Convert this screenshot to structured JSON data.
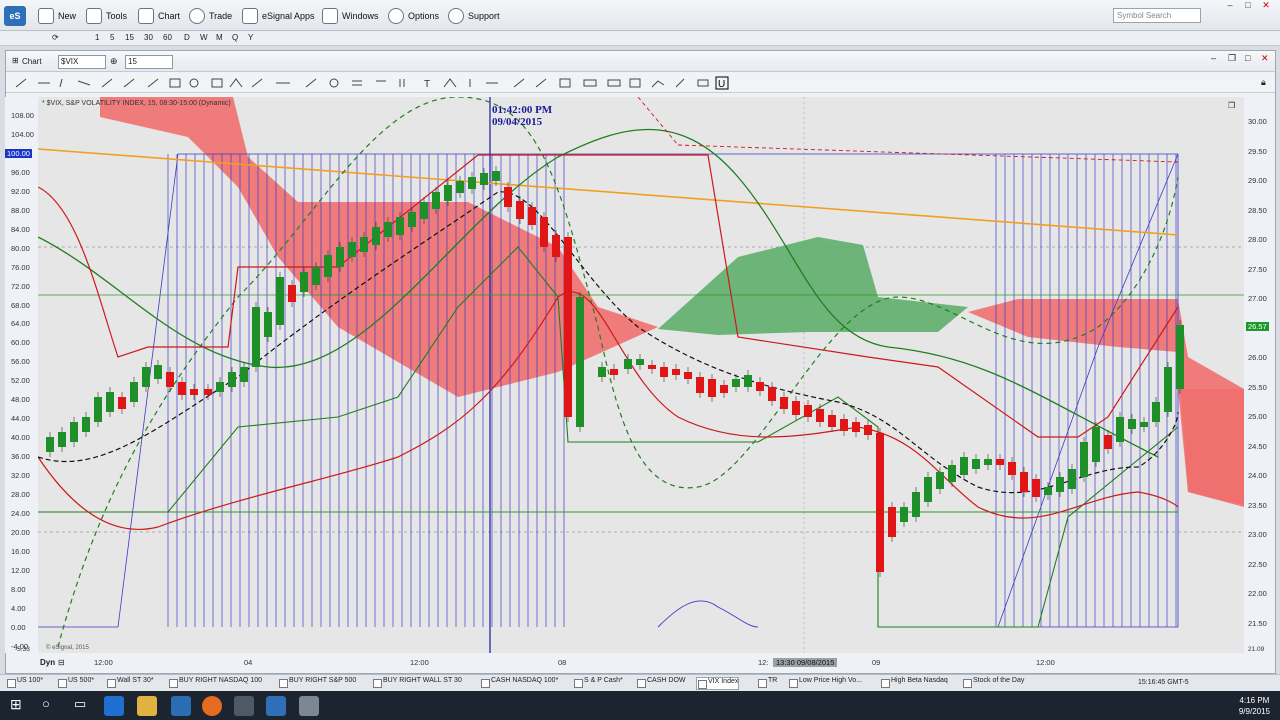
{
  "menubar": {
    "logo": "eS",
    "items": [
      "New",
      "Tools",
      "Chart",
      "Trade",
      "eSignal Apps",
      "Windows",
      "Options",
      "Support"
    ],
    "search_placeholder": "Symbol Search"
  },
  "intervals": [
    "1",
    "5",
    "15",
    "30",
    "60",
    "D",
    "W",
    "M",
    "Q",
    "Y"
  ],
  "chart": {
    "window_label": "Chart",
    "symbol": "$VIX",
    "interval": "15",
    "legend": "* $VIX, S&P VOLATILITY INDEX, 15, 08:30-15:00 (Dynamic)",
    "cursor_time": "01:42:00 PM",
    "cursor_date": "09/04/2015",
    "copyright": "© eSignal, 2015",
    "left_axis": [
      "108.00",
      "104.00",
      "100.00",
      "96.00",
      "92.00",
      "88.00",
      "84.00",
      "80.00",
      "76.00",
      "72.00",
      "68.00",
      "64.00",
      "60.00",
      "56.00",
      "52.00",
      "48.00",
      "44.00",
      "40.00",
      "36.00",
      "32.00",
      "28.00",
      "24.00",
      "20.00",
      "16.00",
      "12.00",
      "8.00",
      "4.00",
      "0.00",
      "-4.00"
    ],
    "left_axis_marker": "100.00",
    "left_axis_bottom": "-5.33",
    "right_axis": [
      "30.00",
      "29.50",
      "29.00",
      "28.50",
      "28.00",
      "27.50",
      "27.00",
      "26.50",
      "26.00",
      "25.50",
      "25.00",
      "24.50",
      "24.00",
      "23.50",
      "23.00",
      "22.50",
      "22.00",
      "21.50"
    ],
    "right_axis_marker": "26.57",
    "right_axis_bottom": "21.09",
    "x_axis": [
      "12:00",
      "04",
      "12:00",
      "08",
      "12:",
      "09",
      "12:00"
    ],
    "x_axis_cursor": "13:30 09/08/2015",
    "dyn_label": "Dyn"
  },
  "tabs": [
    "US 100*",
    "US 500*",
    "Wall ST 30*",
    "BUY RIGHT NASDAQ 100",
    "BUY RIGHT S&P 500",
    "BUY RIGHT WALL ST 30",
    "CASH NASDAQ 100*",
    "S & P Cash*",
    "CASH DOW",
    "VIX Index",
    "TR",
    "Low Price High Vo...",
    "High Beta Nasdaq",
    "Stock of the Day"
  ],
  "status_time": "15:16:45 GMT-5",
  "clock": {
    "time": "4:16 PM",
    "date": "9/9/2015"
  }
}
